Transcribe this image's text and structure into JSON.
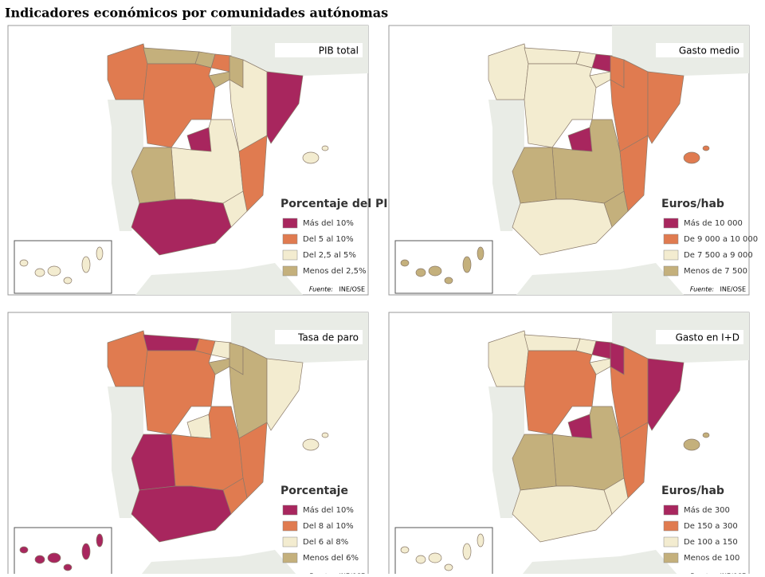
{
  "title": "Indicadores económicos por comunidades autónomas",
  "panels": [
    {
      "title": "PIB total",
      "legend_title": "Porcentaje del PIB",
      "legend": [
        {
          "label": "Más del 10%",
          "color": "#a8265e"
        },
        {
          "label": "Del 5 al 10%",
          "color": "#e07b50"
        },
        {
          "label": "Del 2,5 al 5%",
          "color": "#f3ecd0"
        },
        {
          "label": "Menos del 2,5%",
          "color": "#c4b07c"
        }
      ],
      "source_label": "Fuente:",
      "source": "INE/OSE"
    },
    {
      "title": "Gasto medio",
      "legend_title": "Euros/hab",
      "legend": [
        {
          "label": "Más de 10 000",
          "color": "#a8265e"
        },
        {
          "label": "De 9 000 a 10 000",
          "color": "#e07b50"
        },
        {
          "label": "De 7 500 a 9 000",
          "color": "#f3ecd0"
        },
        {
          "label": "Menos de 7 500",
          "color": "#c4b07c"
        }
      ],
      "source_label": "Fuente:",
      "source": "INE/OSE"
    },
    {
      "title": "Tasa de paro",
      "legend_title": "Porcentaje",
      "legend": [
        {
          "label": "Más del 10%",
          "color": "#a8265e"
        },
        {
          "label": "Del 8 al 10%",
          "color": "#e07b50"
        },
        {
          "label": "Del 6 al 8%",
          "color": "#f3ecd0"
        },
        {
          "label": "Menos del 6%",
          "color": "#c4b07c"
        }
      ],
      "source_label": "Fuente:",
      "source": "INE/OSE"
    },
    {
      "title": "Gasto en I+D",
      "legend_title": "Euros/hab",
      "legend": [
        {
          "label": "Más de 300",
          "color": "#a8265e"
        },
        {
          "label": "De 150 a 300",
          "color": "#e07b50"
        },
        {
          "label": "De 100 a 150",
          "color": "#f3ecd0"
        },
        {
          "label": "Menos de 100",
          "color": "#c4b07c"
        }
      ],
      "source_label": "Fuente:",
      "source": "INE/OSE"
    }
  ]
}
